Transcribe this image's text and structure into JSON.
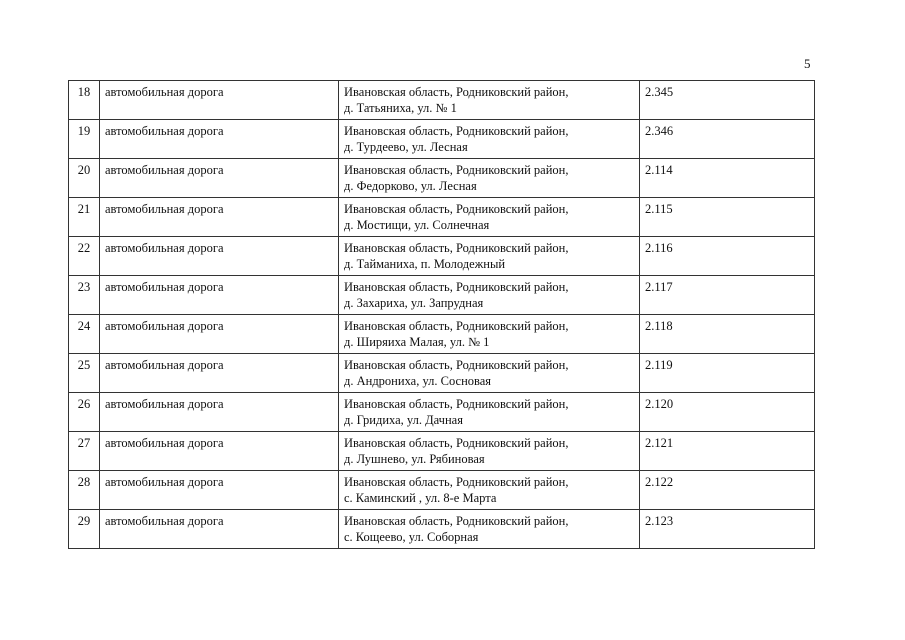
{
  "page_number": "5",
  "rows": [
    {
      "n": "18",
      "type": "автомобильная дорога",
      "addr1": "Ивановская область, Родниковский район,",
      "addr2": "д. Татьяниха, ул. № 1",
      "code": "2.345"
    },
    {
      "n": "19",
      "type": "автомобильная дорога",
      "addr1": "Ивановская область, Родниковский район,",
      "addr2": "д. Турдеево, ул. Лесная",
      "code": "2.346"
    },
    {
      "n": "20",
      "type": "автомобильная дорога",
      "addr1": "Ивановская область, Родниковский район,",
      "addr2": "д. Федорково, ул. Лесная",
      "code": "2.114"
    },
    {
      "n": "21",
      "type": "автомобильная дорога",
      "addr1": "Ивановская область, Родниковский район,",
      "addr2": "д. Мостищи, ул. Солнечная",
      "code": "2.115"
    },
    {
      "n": "22",
      "type": "автомобильная дорога",
      "addr1": "Ивановская область, Родниковский район,",
      "addr2": "д. Тайманиха, п. Молодежный",
      "code": "2.116"
    },
    {
      "n": "23",
      "type": "автомобильная дорога",
      "addr1": "Ивановская область, Родниковский район,",
      "addr2": "д. Захариха, ул. Запрудная",
      "code": "2.117"
    },
    {
      "n": "24",
      "type": "автомобильная дорога",
      "addr1": "Ивановская область, Родниковский район,",
      "addr2": "д. Ширяиха Малая, ул. № 1",
      "code": "2.118"
    },
    {
      "n": "25",
      "type": "автомобильная дорога",
      "addr1": "Ивановская область, Родниковский район,",
      "addr2": "д. Андрониха, ул. Сосновая",
      "code": "2.119"
    },
    {
      "n": "26",
      "type": "автомобильная дорога",
      "addr1": "Ивановская область, Родниковский район,",
      "addr2": "д. Гридиха, ул. Дачная",
      "code": "2.120"
    },
    {
      "n": "27",
      "type": "автомобильная дорога",
      "addr1": "Ивановская область, Родниковский район,",
      "addr2": "д. Лушнево, ул. Рябиновая",
      "code": "2.121"
    },
    {
      "n": "28",
      "type": "автомобильная дорога",
      "addr1": "Ивановская область, Родниковский район,",
      "addr2": "с. Каминский , ул. 8-е Марта",
      "code": "2.122"
    },
    {
      "n": "29",
      "type": "автомобильная дорога",
      "addr1": "Ивановская область, Родниковский район,",
      "addr2": "с. Кощеево, ул. Соборная",
      "code": "2.123"
    }
  ]
}
